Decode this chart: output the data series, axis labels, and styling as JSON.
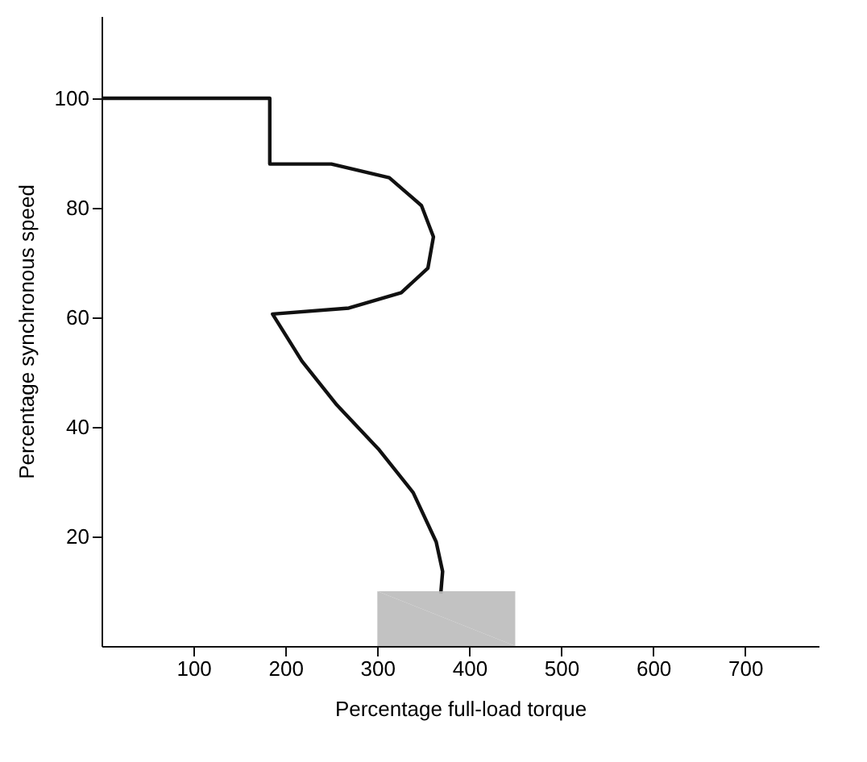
{
  "chart_data": {
    "type": "line",
    "xlabel": "Percentage full-load torque",
    "ylabel": "Percentage synchronous speed",
    "xlim": [
      0,
      780
    ],
    "ylim": [
      0,
      115
    ],
    "xticks": [
      100,
      200,
      300,
      400,
      500,
      600,
      700
    ],
    "yticks": [
      20,
      40,
      60,
      80,
      100
    ],
    "grid": false,
    "marker": "none",
    "line_style": "solid",
    "series": [
      {
        "color": "#111111",
        "x": [
          0,
          183,
          183,
          250,
          313,
          348,
          361,
          355,
          326,
          269,
          186,
          218,
          256,
          301,
          339,
          364,
          371,
          369
        ],
        "values": [
          100,
          100,
          88,
          88,
          85.5,
          80.4,
          74.7,
          69,
          64.5,
          61.7,
          60.6,
          52,
          44,
          36,
          28,
          19,
          13.6,
          9.6
        ]
      },
      {
        "type": "area",
        "color": "#bbbbbb",
        "x": [
          300,
          450
        ],
        "values": [
          10,
          10
        ]
      }
    ]
  }
}
